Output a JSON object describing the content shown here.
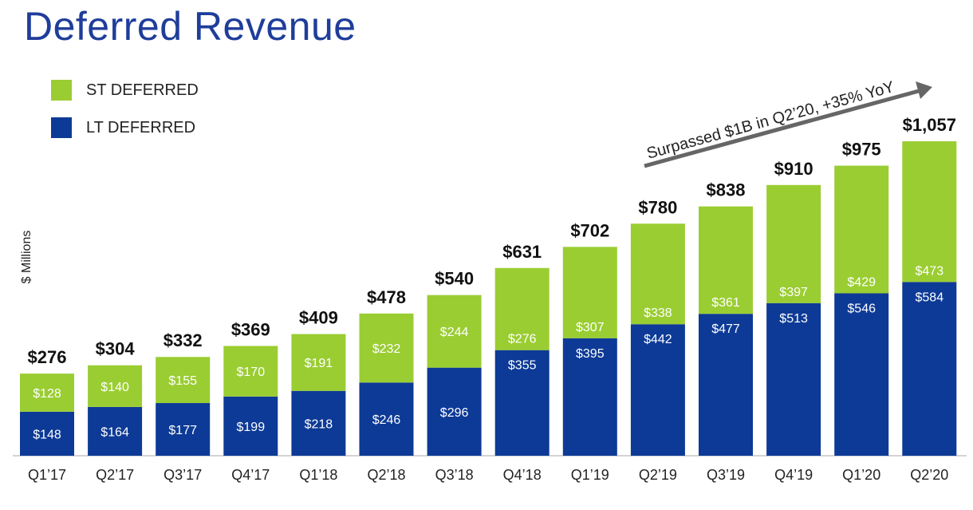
{
  "page": {
    "title": "Deferred Revenue"
  },
  "colors": {
    "st": "#9acd32",
    "lt": "#0d3a96",
    "title": "#1f3d9a",
    "arrow": "#666666"
  },
  "legend": [
    {
      "label": "ST DEFERRED",
      "color": "#9acd32"
    },
    {
      "label": "LT DEFERRED",
      "color": "#0d3a96"
    }
  ],
  "chart_data": {
    "type": "bar",
    "stacked": true,
    "title": "Deferred Revenue",
    "ylabel": "$ Millions",
    "xlabel": "",
    "ylim": [
      0,
      1057
    ],
    "categories": [
      "Q1’17",
      "Q2’17",
      "Q3’17",
      "Q4’17",
      "Q1’18",
      "Q2’18",
      "Q3’18",
      "Q4’18",
      "Q1’19",
      "Q2’19",
      "Q3’19",
      "Q4’19",
      "Q1’20",
      "Q2’20"
    ],
    "series": [
      {
        "name": "LT DEFERRED",
        "values": [
          148,
          164,
          177,
          199,
          218,
          246,
          296,
          355,
          395,
          442,
          477,
          513,
          546,
          584
        ],
        "labels": [
          "$148",
          "$164",
          "$177",
          "$199",
          "$218",
          "$246",
          "$296",
          "$355",
          "$395",
          "$442",
          "$477",
          "$513",
          "$546",
          "$584"
        ]
      },
      {
        "name": "ST DEFERRED",
        "values": [
          128,
          140,
          155,
          170,
          191,
          232,
          244,
          276,
          307,
          338,
          361,
          397,
          429,
          473
        ],
        "labels": [
          "$128",
          "$140",
          "$155",
          "$170",
          "$191",
          "$232",
          "$244",
          "$276",
          "$307",
          "$338",
          "$361",
          "$397",
          "$429",
          "$473"
        ]
      }
    ],
    "totals": [
      276,
      304,
      332,
      369,
      409,
      478,
      540,
      631,
      702,
      780,
      838,
      910,
      975,
      1057
    ],
    "total_labels": [
      "$276",
      "$304",
      "$332",
      "$369",
      "$409",
      "$478",
      "$540",
      "$631",
      "$702",
      "$780",
      "$838",
      "$910",
      "$975",
      "$1,057"
    ],
    "annotation": "Surpassed $1B in Q2’20, +35% YoY"
  }
}
